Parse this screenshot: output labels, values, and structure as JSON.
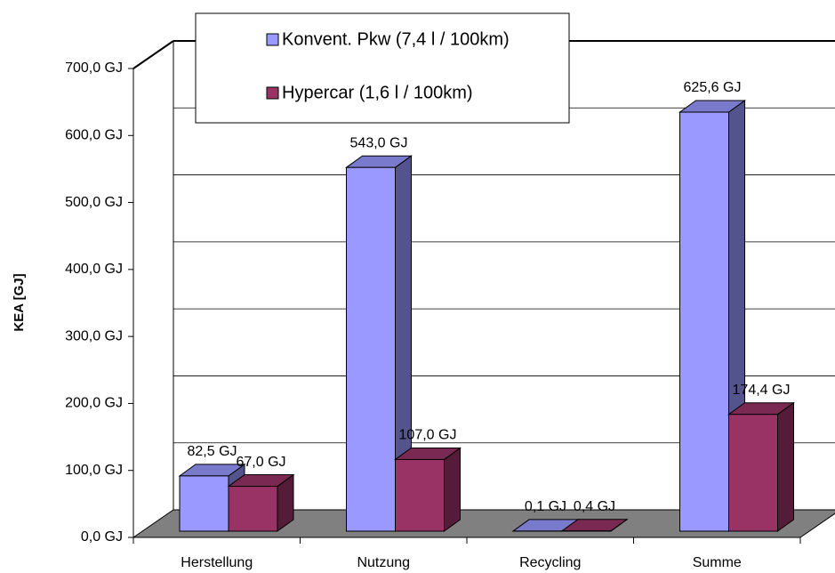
{
  "chart_data": {
    "type": "bar3d",
    "y_label": "KEA [GJ]",
    "categories": [
      "Herstellung",
      "Nutzung",
      "Recycling",
      "Summe"
    ],
    "series": [
      {
        "name": "Konvent. Pkw (7,4 l / 100km)",
        "color": "#9999ff",
        "values": [
          82.5,
          543.0,
          0.1,
          625.6
        ],
        "value_labels": [
          "82,5 GJ",
          "543,0 GJ",
          "0,1 GJ",
          "625,6 GJ"
        ]
      },
      {
        "name": "Hypercar (1,6 l / 100km)",
        "color": "#993366",
        "values": [
          67.0,
          107.0,
          0.4,
          174.4
        ],
        "value_labels": [
          "67,0 GJ",
          "107,0 GJ",
          "0,4 GJ",
          "174,4 GJ"
        ]
      }
    ],
    "ylim": [
      0,
      700
    ],
    "yticks": [
      {
        "value": 0,
        "label": "0,0 GJ"
      },
      {
        "value": 100,
        "label": "100,0 GJ"
      },
      {
        "value": 200,
        "label": "200,0 GJ"
      },
      {
        "value": 300,
        "label": "300,0 GJ"
      },
      {
        "value": 400,
        "label": "400,0 GJ"
      },
      {
        "value": 500,
        "label": "500,0 GJ"
      },
      {
        "value": 600,
        "label": "600,0 GJ"
      },
      {
        "value": 700,
        "label": "700,0 GJ"
      }
    ],
    "grid": true
  }
}
